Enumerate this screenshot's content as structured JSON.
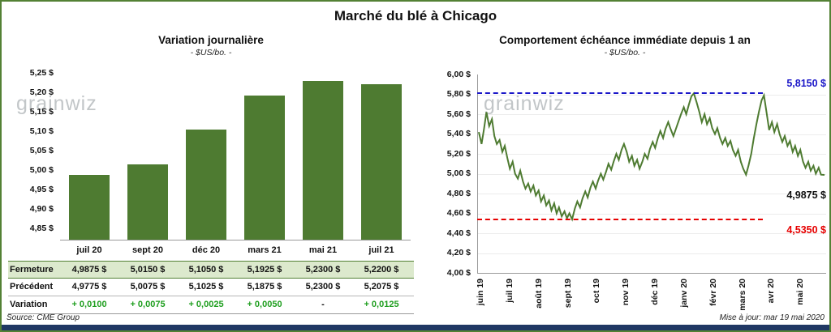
{
  "page": {
    "title": "Marché du blé à Chicago",
    "source_note": "Source: CME Group",
    "updated_note": "Mise à jour: mar 19 mai 2020",
    "watermark": "grainwiz",
    "frame_color": "#538135",
    "bottom_bar_color": "#203864",
    "positive_green": "#1e9e1e"
  },
  "chart_data": [
    {
      "type": "bar",
      "title": "Variation journalière",
      "subtitle": "- $US/bo. -",
      "categories": [
        "juil 20",
        "sept 20",
        "déc 20",
        "mars 21",
        "mai 21",
        "juil 21"
      ],
      "values": [
        4.9875,
        5.015,
        5.105,
        5.1925,
        5.23,
        5.22
      ],
      "ylim": [
        4.85,
        5.25
      ],
      "ytick_labels": [
        "5,25 $",
        "5,20 $",
        "5,15 $",
        "5,10 $",
        "5,05 $",
        "5,00 $",
        "4,95 $",
        "4,90 $",
        "4,85 $"
      ],
      "bar_color": "#4e7b31",
      "grid": false,
      "legend": "none"
    },
    {
      "type": "line",
      "title": "Comportement échéance immédiate depuis 1 an",
      "subtitle": "- $US/bo. -",
      "x_labels": [
        "juin 19",
        "juil 19",
        "août 19",
        "sept 19",
        "oct 19",
        "nov 19",
        "déc 19",
        "janv 20",
        "févr 20",
        "mars 20",
        "avr 20",
        "mai 20"
      ],
      "ylim": [
        4.0,
        6.0
      ],
      "ytick_labels": [
        "6,00 $",
        "5,80 $",
        "5,60 $",
        "5,40 $",
        "5,20 $",
        "5,00 $",
        "4,80 $",
        "4,60 $",
        "4,40 $",
        "4,20 $",
        "4,00 $"
      ],
      "line_color": "#4e7b31",
      "grid": true,
      "legend": "none",
      "high_line": {
        "value": 5.815,
        "label": "5,8150 $",
        "color": "#1a16c8",
        "style": "dashed"
      },
      "low_line": {
        "value": 4.535,
        "label": "4,5350 $",
        "color": "#e60000",
        "style": "dashed"
      },
      "last_point": {
        "value": 4.9875,
        "label": "4,9875 $"
      },
      "points": [
        [
          0.0,
          5.42
        ],
        [
          0.008,
          5.3
        ],
        [
          0.015,
          5.45
        ],
        [
          0.022,
          5.62
        ],
        [
          0.03,
          5.48
        ],
        [
          0.038,
          5.55
        ],
        [
          0.045,
          5.38
        ],
        [
          0.052,
          5.3
        ],
        [
          0.06,
          5.34
        ],
        [
          0.068,
          5.22
        ],
        [
          0.075,
          5.28
        ],
        [
          0.083,
          5.15
        ],
        [
          0.09,
          5.05
        ],
        [
          0.098,
          5.12
        ],
        [
          0.105,
          5.0
        ],
        [
          0.113,
          4.95
        ],
        [
          0.12,
          5.03
        ],
        [
          0.128,
          4.92
        ],
        [
          0.135,
          4.85
        ],
        [
          0.143,
          4.9
        ],
        [
          0.15,
          4.82
        ],
        [
          0.158,
          4.88
        ],
        [
          0.165,
          4.78
        ],
        [
          0.173,
          4.83
        ],
        [
          0.18,
          4.72
        ],
        [
          0.188,
          4.78
        ],
        [
          0.195,
          4.68
        ],
        [
          0.203,
          4.73
        ],
        [
          0.21,
          4.63
        ],
        [
          0.218,
          4.7
        ],
        [
          0.225,
          4.6
        ],
        [
          0.232,
          4.66
        ],
        [
          0.24,
          4.57
        ],
        [
          0.248,
          4.62
        ],
        [
          0.255,
          4.55
        ],
        [
          0.262,
          4.6
        ],
        [
          0.27,
          4.54
        ],
        [
          0.278,
          4.65
        ],
        [
          0.285,
          4.72
        ],
        [
          0.293,
          4.66
        ],
        [
          0.3,
          4.75
        ],
        [
          0.308,
          4.82
        ],
        [
          0.315,
          4.76
        ],
        [
          0.323,
          4.86
        ],
        [
          0.33,
          4.92
        ],
        [
          0.338,
          4.85
        ],
        [
          0.345,
          4.93
        ],
        [
          0.353,
          5.0
        ],
        [
          0.36,
          4.94
        ],
        [
          0.368,
          5.02
        ],
        [
          0.375,
          5.1
        ],
        [
          0.383,
          5.04
        ],
        [
          0.39,
          5.12
        ],
        [
          0.398,
          5.2
        ],
        [
          0.405,
          5.14
        ],
        [
          0.413,
          5.24
        ],
        [
          0.42,
          5.3
        ],
        [
          0.428,
          5.22
        ],
        [
          0.435,
          5.12
        ],
        [
          0.443,
          5.18
        ],
        [
          0.45,
          5.08
        ],
        [
          0.458,
          5.14
        ],
        [
          0.465,
          5.05
        ],
        [
          0.473,
          5.12
        ],
        [
          0.48,
          5.2
        ],
        [
          0.488,
          5.15
        ],
        [
          0.495,
          5.25
        ],
        [
          0.503,
          5.32
        ],
        [
          0.51,
          5.26
        ],
        [
          0.518,
          5.36
        ],
        [
          0.525,
          5.43
        ],
        [
          0.533,
          5.36
        ],
        [
          0.54,
          5.45
        ],
        [
          0.548,
          5.52
        ],
        [
          0.555,
          5.45
        ],
        [
          0.563,
          5.38
        ],
        [
          0.57,
          5.45
        ],
        [
          0.578,
          5.53
        ],
        [
          0.585,
          5.6
        ],
        [
          0.593,
          5.67
        ],
        [
          0.6,
          5.6
        ],
        [
          0.608,
          5.7
        ],
        [
          0.615,
          5.78
        ],
        [
          0.622,
          5.81
        ],
        [
          0.63,
          5.72
        ],
        [
          0.638,
          5.62
        ],
        [
          0.645,
          5.52
        ],
        [
          0.653,
          5.6
        ],
        [
          0.66,
          5.5
        ],
        [
          0.668,
          5.56
        ],
        [
          0.675,
          5.46
        ],
        [
          0.683,
          5.4
        ],
        [
          0.69,
          5.46
        ],
        [
          0.698,
          5.36
        ],
        [
          0.705,
          5.3
        ],
        [
          0.713,
          5.36
        ],
        [
          0.72,
          5.28
        ],
        [
          0.728,
          5.33
        ],
        [
          0.735,
          5.24
        ],
        [
          0.743,
          5.18
        ],
        [
          0.75,
          5.24
        ],
        [
          0.758,
          5.12
        ],
        [
          0.765,
          5.05
        ],
        [
          0.773,
          4.99
        ],
        [
          0.78,
          5.08
        ],
        [
          0.788,
          5.2
        ],
        [
          0.795,
          5.35
        ],
        [
          0.803,
          5.5
        ],
        [
          0.81,
          5.62
        ],
        [
          0.818,
          5.74
        ],
        [
          0.825,
          5.79
        ],
        [
          0.833,
          5.6
        ],
        [
          0.84,
          5.44
        ],
        [
          0.848,
          5.52
        ],
        [
          0.855,
          5.42
        ],
        [
          0.863,
          5.5
        ],
        [
          0.87,
          5.4
        ],
        [
          0.878,
          5.32
        ],
        [
          0.885,
          5.38
        ],
        [
          0.893,
          5.28
        ],
        [
          0.9,
          5.33
        ],
        [
          0.908,
          5.22
        ],
        [
          0.915,
          5.28
        ],
        [
          0.923,
          5.18
        ],
        [
          0.93,
          5.24
        ],
        [
          0.938,
          5.12
        ],
        [
          0.945,
          5.06
        ],
        [
          0.953,
          5.12
        ],
        [
          0.96,
          5.03
        ],
        [
          0.968,
          5.08
        ],
        [
          0.975,
          5.0
        ],
        [
          0.983,
          5.06
        ],
        [
          0.99,
          4.99
        ],
        [
          1.0,
          4.9875
        ]
      ]
    }
  ],
  "table": {
    "highlight_bg": "#dce9cd",
    "rows": [
      {
        "id": "fermeture",
        "label": "Fermeture",
        "values": [
          "4,9875 $",
          "5,0150 $",
          "5,1050 $",
          "5,1925 $",
          "5,2300 $",
          "5,2200 $"
        ]
      },
      {
        "id": "precedent",
        "label": "Précédent",
        "values": [
          "4,9775 $",
          "5,0075 $",
          "5,1025 $",
          "5,1875 $",
          "5,2300 $",
          "5,2075 $"
        ]
      },
      {
        "id": "variation",
        "label": "Variation",
        "values": [
          "+ 0,0100",
          "+ 0,0075",
          "+ 0,0025",
          "+ 0,0050",
          "-",
          "+ 0,0125"
        ]
      }
    ]
  }
}
